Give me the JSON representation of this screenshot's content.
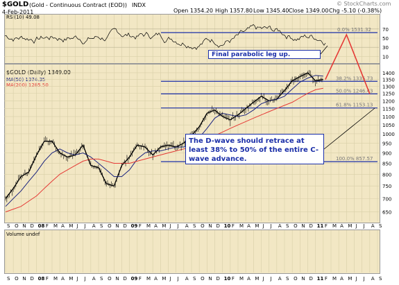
{
  "header": {
    "symbol": "$GOLD",
    "description": "(Gold - Continuous Contract (EOD))",
    "exchange": "INDX",
    "date": "4-Feb-2011",
    "open": "Open 1354.20",
    "high": "High 1357.80",
    "low": "Low 1345.40",
    "close": "Close 1349.00",
    "change": "Chg -5.10 (-0.38%)",
    "watermark": "© StockCharts.com"
  },
  "rsi_panel": {
    "label": "RSI(10) 49.08",
    "ticks": [
      "70",
      "50",
      "30",
      "10"
    ],
    "fib_label": "0.0% 1531.32",
    "annotation": "Final parabolic leg up."
  },
  "price_panel": {
    "label": "$GOLD (Daily) 1349.00",
    "ma50_label": "MA(50) 1374.35",
    "ma200_label": "MA(200) 1285.50",
    "ma50_color": "#1a237e",
    "ma200_color": "#e53935",
    "fib_color": "#1b2fa8",
    "fib_levels": [
      {
        "label": "38.2% 1335.73",
        "price": 1335.73
      },
      {
        "label": "50.0% 1246.43",
        "price": 1246.43
      },
      {
        "label": "61.8% 1153.13",
        "price": 1153.13
      },
      {
        "label": "100.0% 857.57",
        "price": 857.57
      }
    ],
    "annotation": "The D-wave should retrace at least 38% to 50% of the entire C-wave advance.",
    "y_ticks": [
      1400,
      1350,
      1300,
      1250,
      1200,
      1150,
      1100,
      1050,
      1000,
      950,
      900,
      850,
      800,
      750,
      700,
      650
    ]
  },
  "volume_panel": {
    "label": "Volume undef"
  },
  "x_axis_labels": [
    "S",
    "O",
    "N",
    "D",
    "08",
    "F",
    "M",
    "A",
    "M",
    "J",
    "J",
    "A",
    "S",
    "O",
    "N",
    "D",
    "09",
    "F",
    "M",
    "A",
    "M",
    "J",
    "J",
    "A",
    "S",
    "O",
    "N",
    "D",
    "10",
    "F",
    "M",
    "A",
    "M",
    "J",
    "J",
    "A",
    "S",
    "O",
    "N",
    "D",
    "11",
    "F",
    "M",
    "A",
    "M",
    "J",
    "J",
    "A",
    "S"
  ],
  "chart_data": {
    "type": "line",
    "title": "$GOLD (Gold - Continuous Contract (EOD)) INDX",
    "x": [
      "2007-09",
      "2007-10",
      "2007-11",
      "2007-12",
      "2008-01",
      "2008-02",
      "2008-03",
      "2008-04",
      "2008-05",
      "2008-06",
      "2008-07",
      "2008-08",
      "2008-09",
      "2008-10",
      "2008-11",
      "2008-12",
      "2009-01",
      "2009-02",
      "2009-03",
      "2009-04",
      "2009-05",
      "2009-06",
      "2009-07",
      "2009-08",
      "2009-09",
      "2009-10",
      "2009-11",
      "2009-12",
      "2010-01",
      "2010-02",
      "2010-03",
      "2010-04",
      "2010-05",
      "2010-06",
      "2010-07",
      "2010-08",
      "2010-09",
      "2010-10",
      "2010-11",
      "2010-12",
      "2011-01",
      "2011-02"
    ],
    "series": [
      {
        "name": "$GOLD (Daily)",
        "values": [
          700,
          740,
          790,
          810,
          890,
          960,
          960,
          900,
          880,
          890,
          940,
          840,
          830,
          760,
          750,
          840,
          880,
          940,
          930,
          890,
          930,
          940,
          930,
          950,
          990,
          1040,
          1120,
          1140,
          1100,
          1080,
          1110,
          1150,
          1190,
          1230,
          1200,
          1210,
          1270,
          1340,
          1370,
          1400,
          1340,
          1349
        ]
      },
      {
        "name": "MA(50)",
        "values": [
          670,
          700,
          730,
          770,
          810,
          860,
          900,
          920,
          900,
          890,
          900,
          880,
          850,
          820,
          790,
          790,
          820,
          870,
          900,
          910,
          910,
          920,
          930,
          930,
          940,
          980,
          1030,
          1090,
          1120,
          1110,
          1100,
          1110,
          1140,
          1180,
          1200,
          1210,
          1230,
          1280,
          1330,
          1360,
          1380,
          1374.35
        ]
      },
      {
        "name": "MA(200)",
        "values": [
          650,
          660,
          670,
          690,
          710,
          740,
          770,
          800,
          820,
          840,
          860,
          870,
          870,
          860,
          850,
          850,
          850,
          860,
          870,
          880,
          890,
          900,
          910,
          920,
          930,
          950,
          970,
          990,
          1010,
          1030,
          1050,
          1070,
          1090,
          1110,
          1130,
          1150,
          1170,
          1190,
          1220,
          1250,
          1275,
          1285.5
        ]
      }
    ],
    "projection": [
      {
        "x": "2011-02",
        "y": 1349
      },
      {
        "x": "2011-05",
        "y": 1531.32
      },
      {
        "x": "2011-08",
        "y": 1246.43
      }
    ],
    "ylim": [
      620,
      1460
    ],
    "ylabel": "",
    "xlabel": "",
    "scale": "log",
    "grid": true,
    "legend": "top-left"
  }
}
